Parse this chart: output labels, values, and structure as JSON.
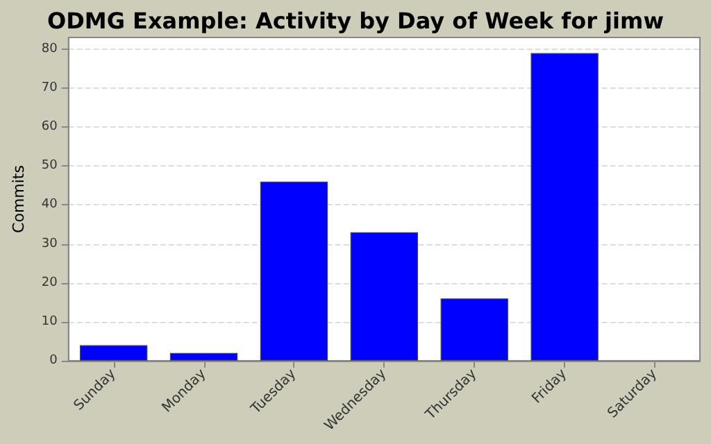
{
  "chart_data": {
    "type": "bar",
    "title": "ODMG Example: Activity by Day of Week for jimw",
    "ylabel": "Commits",
    "categories": [
      "Sunday",
      "Monday",
      "Tuesday",
      "Wednesday",
      "Thursday",
      "Friday",
      "Saturday"
    ],
    "values": [
      4,
      2,
      46,
      33,
      16,
      79,
      0
    ],
    "color": "#0000ff",
    "ylim": [
      0,
      83
    ],
    "yticks": [
      0,
      10,
      20,
      30,
      40,
      50,
      60,
      70,
      80
    ],
    "grid": "y"
  }
}
